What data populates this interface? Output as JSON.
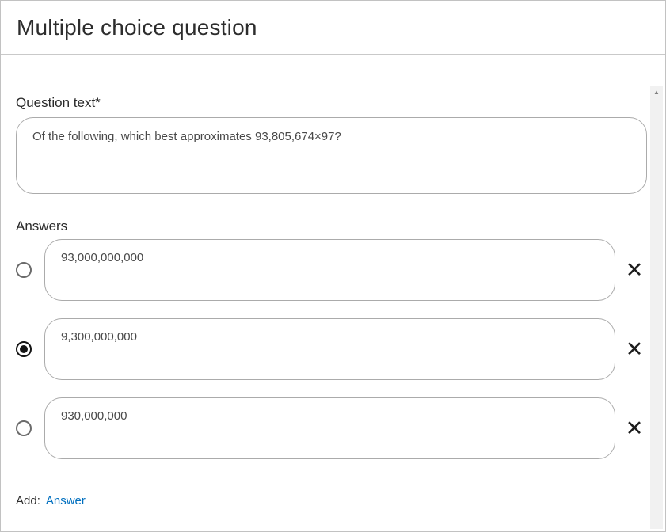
{
  "header": {
    "title": "Multiple choice question"
  },
  "question": {
    "label": "Question text*",
    "value": "Of the following, which best approximates 93,805,674×97?"
  },
  "answers": {
    "label": "Answers",
    "items": [
      {
        "text": "93,000,000,000",
        "selected": false
      },
      {
        "text": "9,300,000,000",
        "selected": true
      },
      {
        "text": "930,000,000",
        "selected": false
      }
    ]
  },
  "footer": {
    "add_label": "Add:",
    "add_link": "Answer"
  },
  "icons": {
    "remove": "✕",
    "scroll_up": "▲"
  },
  "colors": {
    "link": "#006fbf",
    "text": "#2d2d2d",
    "input_border": "#ababab",
    "scrollbar_track": "#f1f1f1"
  }
}
